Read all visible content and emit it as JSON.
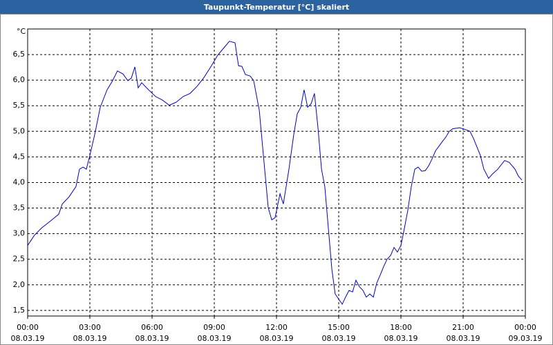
{
  "chart_data": {
    "type": "line",
    "title": "Taupunkt-Temperatur [°C] skaliert",
    "y_label": "°C",
    "x": [
      0,
      0.33,
      0.67,
      1.17,
      1.5,
      1.67,
      2,
      2.33,
      2.5,
      2.67,
      2.83,
      3,
      3.23,
      3.5,
      3.83,
      4.07,
      4.33,
      4.6,
      4.83,
      5,
      5.17,
      5.33,
      5.5,
      5.83,
      6.17,
      6.5,
      6.83,
      7.17,
      7.5,
      7.83,
      8.17,
      8.5,
      8.83,
      9.17,
      9.5,
      9.73,
      10,
      10.17,
      10.33,
      10.5,
      10.73,
      10.9,
      11.17,
      11.4,
      11.6,
      11.77,
      11.93,
      12.17,
      12.33,
      12.6,
      12.83,
      13,
      13.17,
      13.33,
      13.5,
      13.67,
      13.83,
      14,
      14.17,
      14.33,
      14.5,
      14.67,
      14.83,
      15,
      15.17,
      15.33,
      15.5,
      15.67,
      15.83,
      16,
      16.17,
      16.33,
      16.5,
      16.67,
      16.83,
      17,
      17.17,
      17.33,
      17.5,
      17.67,
      17.83,
      18,
      18.17,
      18.33,
      18.5,
      18.67,
      18.83,
      19,
      19.17,
      19.33,
      19.5,
      19.67,
      20,
      20.17,
      20.33,
      20.5,
      20.83,
      21.07,
      21.33,
      21.5,
      21.67,
      21.83,
      22,
      22.23,
      22.4,
      22.67,
      23,
      23.23,
      23.5,
      23.67,
      23.83
    ],
    "series": [
      {
        "name": "Taupunkt-Temperatur",
        "color": "#0000c8",
        "values": [
          2.77,
          2.97,
          3.11,
          3.27,
          3.38,
          3.58,
          3.72,
          3.92,
          4.26,
          4.3,
          4.26,
          4.53,
          4.93,
          5.47,
          5.81,
          5.97,
          6.18,
          6.12,
          5.99,
          6.04,
          6.26,
          5.85,
          5.95,
          5.81,
          5.68,
          5.61,
          5.51,
          5.57,
          5.68,
          5.74,
          5.88,
          6.05,
          6.26,
          6.49,
          6.65,
          6.76,
          6.73,
          6.28,
          6.27,
          6.11,
          6.08,
          5.99,
          5.41,
          4.39,
          3.51,
          3.27,
          3.31,
          3.78,
          3.58,
          4.26,
          4.93,
          5.34,
          5.47,
          5.81,
          5.47,
          5.54,
          5.74,
          5.07,
          4.26,
          3.92,
          3.11,
          2.3,
          1.82,
          1.72,
          1.62,
          1.76,
          1.89,
          1.86,
          2.09,
          1.96,
          1.89,
          1.76,
          1.82,
          1.76,
          2.03,
          2.19,
          2.36,
          2.5,
          2.57,
          2.73,
          2.64,
          2.77,
          3.11,
          3.45,
          3.92,
          4.26,
          4.3,
          4.22,
          4.23,
          4.32,
          4.46,
          4.62,
          4.8,
          4.89,
          5.0,
          5.05,
          5.07,
          5.04,
          5.0,
          4.86,
          4.69,
          4.53,
          4.26,
          4.08,
          4.16,
          4.26,
          4.43,
          4.39,
          4.26,
          4.12,
          4.05
        ]
      }
    ],
    "xlim": [
      0,
      24
    ],
    "xticks": [
      {
        "value": 0,
        "label": "00:00",
        "date": "08.03.19"
      },
      {
        "value": 3,
        "label": "03:00",
        "date": "08.03.19"
      },
      {
        "value": 6,
        "label": "06:00",
        "date": "08.03.19"
      },
      {
        "value": 9,
        "label": "09:00",
        "date": "08.03.19"
      },
      {
        "value": 12,
        "label": "12:00",
        "date": "08.03.19"
      },
      {
        "value": 15,
        "label": "15:00",
        "date": "08.03.19"
      },
      {
        "value": 18,
        "label": "18:00",
        "date": "08.03.19"
      },
      {
        "value": 21,
        "label": "21:00",
        "date": "08.03.19"
      },
      {
        "value": 24,
        "label": "00:00",
        "date": "09.03.19"
      }
    ],
    "ylim": [
      1.39,
      7.0
    ],
    "yticks": [
      {
        "value": 1.5,
        "label": "1,5"
      },
      {
        "value": 2.0,
        "label": "2,0"
      },
      {
        "value": 2.5,
        "label": "2,5"
      },
      {
        "value": 3.0,
        "label": "3,0"
      },
      {
        "value": 3.5,
        "label": "3,5"
      },
      {
        "value": 4.0,
        "label": "4,0"
      },
      {
        "value": 4.5,
        "label": "4,5"
      },
      {
        "value": 5.0,
        "label": "5,0"
      },
      {
        "value": 5.5,
        "label": "5,5"
      },
      {
        "value": 6.0,
        "label": "6,0"
      },
      {
        "value": 6.5,
        "label": "6,5"
      }
    ],
    "grid": true
  }
}
